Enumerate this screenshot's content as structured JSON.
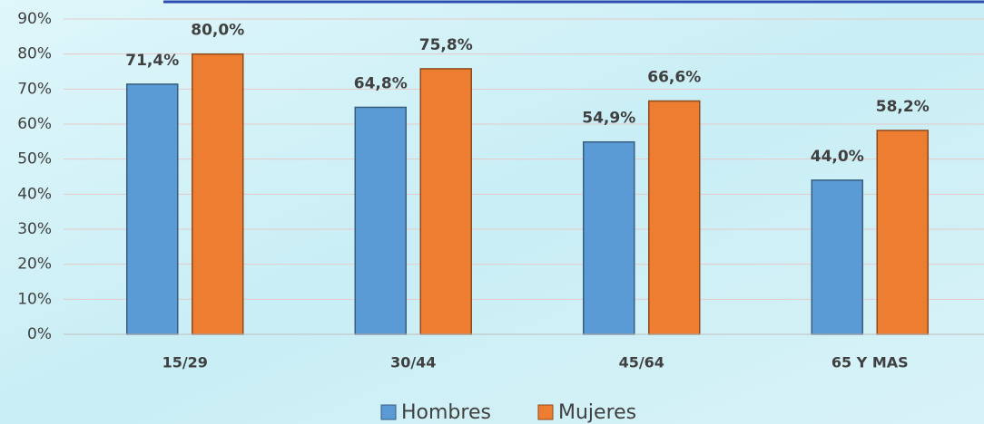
{
  "chart_data": {
    "type": "bar",
    "categories": [
      "15/29",
      "30/44",
      "45/64",
      "65 Y MAS"
    ],
    "series": [
      {
        "name": "Hombres",
        "color": "#5b9bd5",
        "values": [
          71.4,
          64.8,
          54.9,
          44.0
        ],
        "value_labels": [
          "71,4%",
          "64,8%",
          "54,9%",
          "44,0%"
        ]
      },
      {
        "name": "Mujeres",
        "color": "#ed7d31",
        "values": [
          80.0,
          75.8,
          66.6,
          58.2
        ],
        "value_labels": [
          "80,0%",
          "75,8%",
          "66,6%",
          "58,2%"
        ]
      }
    ],
    "ylim": [
      0,
      90
    ],
    "yticks": [
      {
        "value": 0,
        "label": "0%"
      },
      {
        "value": 10,
        "label": "10%"
      },
      {
        "value": 20,
        "label": "20%"
      },
      {
        "value": 30,
        "label": "30%"
      },
      {
        "value": 40,
        "label": "40%"
      },
      {
        "value": 50,
        "label": "50%"
      },
      {
        "value": 60,
        "label": "60%"
      },
      {
        "value": 70,
        "label": "70%"
      },
      {
        "value": 80,
        "label": "80%"
      },
      {
        "value": 90,
        "label": "90%"
      }
    ],
    "grid": true,
    "legend": "bottom"
  }
}
